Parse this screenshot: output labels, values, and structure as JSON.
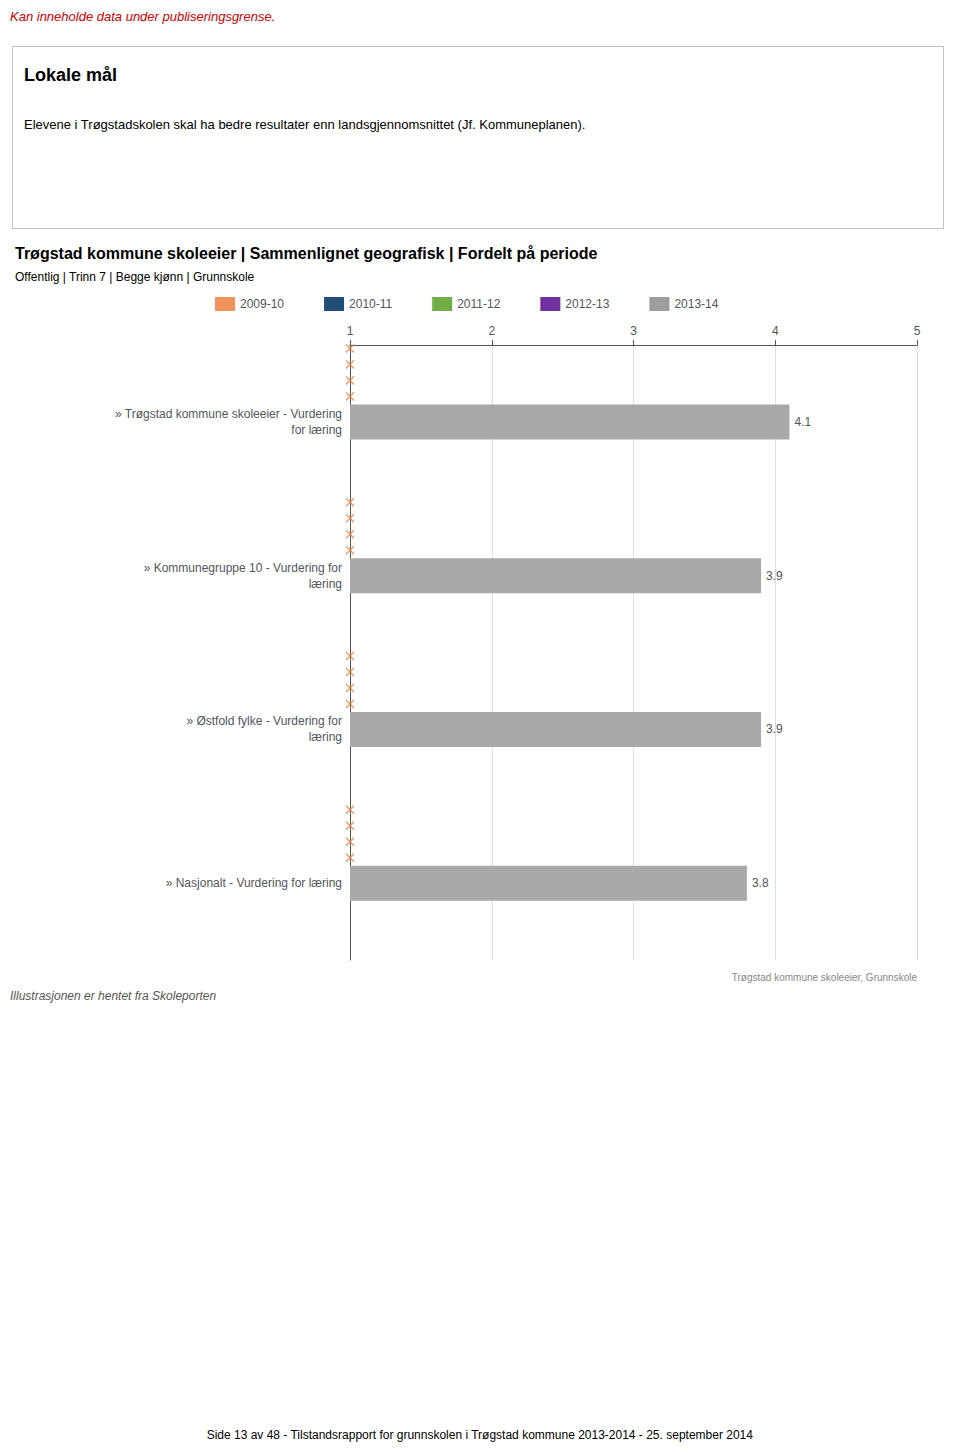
{
  "chart_data": {
    "type": "bar",
    "orientation": "horizontal",
    "page_warning": {
      "text": "Kan inneholde data under publiseringsgrense.",
      "color": "#cc0000"
    },
    "box_title": "Lokale mål",
    "box_text": "Elevene i Trøgstadskolen skal ha bedre resultater enn landsgjennomsnittet (Jf. Kommuneplanen).",
    "title": "Trøgstad kommune skoleeier | Sammenlignet geografisk | Fordelt på periode",
    "subtitle": "Offentlig | Trinn 7 | Begge kjønn | Grunnskole",
    "categories": [
      "» Trøgstad kommune skoleeier - Vurdering\nfor læring",
      "» Kommunegruppe 10 - Vurdering for\nlæring",
      "» Østfold fylke - Vurdering for\nlæring",
      "» Nasjonalt - Vurdering for læring"
    ],
    "series": [
      {
        "name": "2009-10",
        "color": "#f07830",
        "type": "scatter",
        "marker": "x",
        "values": [
          1,
          1,
          1,
          1
        ],
        "counts": [
          4,
          4,
          4,
          4
        ]
      },
      {
        "name": "2010-11",
        "color": "#1f4e79",
        "type": "bar",
        "values": [
          null,
          null,
          null,
          null
        ]
      },
      {
        "name": "2011-12",
        "color": "#70ad47",
        "type": "bar",
        "values": [
          null,
          null,
          null,
          null
        ]
      },
      {
        "name": "2012-13",
        "color": "#7030a0",
        "type": "bar",
        "values": [
          null,
          null,
          null,
          null
        ]
      },
      {
        "name": "2013-14",
        "color": "#9e9e9e",
        "type": "bar",
        "values": [
          4.1,
          3.9,
          3.9,
          3.8
        ],
        "colors": [
          "#a9a9a9",
          "#a9a9a9",
          "#a9a9a9",
          "#a9a9a9"
        ],
        "data_labels": true
      }
    ],
    "xlim": [
      1,
      5
    ],
    "xticks": [
      1,
      2,
      3,
      4,
      5
    ],
    "grid": true,
    "legend": "top",
    "source": "Trøgstad kommune skoleeier, Grunnskole",
    "footer": "Illustrasjonen er hentet fra Skoleporten",
    "page_footer": "Side 13 av 48 - Tilstandsrapport for grunnskolen i Trøgstad kommune 2013-2014 - 25. september 2014"
  }
}
